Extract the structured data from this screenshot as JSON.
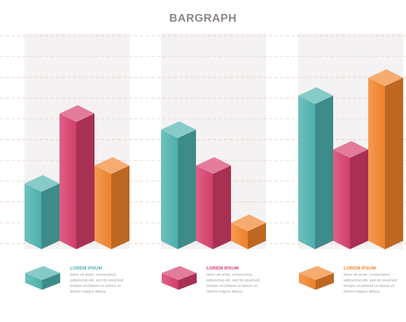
{
  "chart_data": {
    "type": "bar",
    "title": "BARGRAPH",
    "xlabel": "",
    "ylabel": "",
    "ylim": [
      0,
      10
    ],
    "grid": true,
    "style": "3d-isometric",
    "groups": [
      {
        "values": [
          3.2,
          7.1,
          4.2
        ]
      },
      {
        "values": [
          6.2,
          4.2,
          1.0
        ]
      },
      {
        "values": [
          8.1,
          5.1,
          9.1
        ]
      }
    ],
    "series_colors": [
      "#4fb3b0",
      "#d63e6b",
      "#f2842c"
    ]
  },
  "legend": [
    {
      "title": "LOREM IPSUM",
      "lines": [
        "dolor sit amet, consectetur",
        "adipiscing elit, sed do eiusmod",
        "tempor incididunt ut labore et",
        "dolore magna aliqua."
      ],
      "color": "#4fb3b0"
    },
    {
      "title": "LOREM IPSUM",
      "lines": [
        "dolor sit amet, consectetur",
        "adipiscing elit, sed do eiusmod",
        "tempor incididunt ut labore et",
        "dolore magna aliqua."
      ],
      "color": "#d63e6b"
    },
    {
      "title": "LOREM IPSUM",
      "lines": [
        "dolor sit amet, consectetur",
        "adipiscing elit, sed do eiusmod",
        "tempor incididunt ut labore et",
        "dolore magna aliqua."
      ],
      "color": "#f2842c"
    }
  ]
}
